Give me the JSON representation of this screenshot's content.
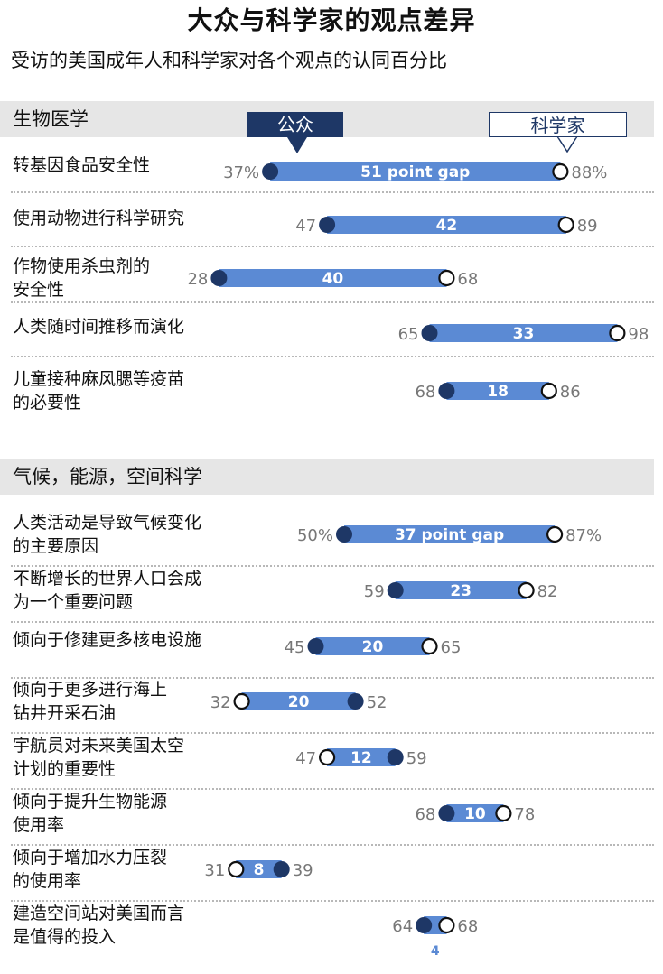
{
  "title": "大众与科学家的观点差异",
  "subtitle": "受访的美国成年人和科学家对各个观点的认同百分比",
  "legend": {
    "public": "公众",
    "scientists": "科学家"
  },
  "colors": {
    "public": "#1e3766",
    "bar": "#5b8ad4",
    "scientists_fill": "#ffffff",
    "value_text": "#777777",
    "band": "#e6e6e6"
  },
  "chart_data": {
    "type": "dumbbell",
    "series": [
      {
        "name": "公众"
      },
      {
        "name": "科学家"
      }
    ],
    "sections": [
      {
        "title": "生物医学",
        "rows": [
          {
            "label": [
              "转基因食品安全性"
            ],
            "public": 37,
            "scientists": 88,
            "gap": 51,
            "gap_label": "51 point gap",
            "public_text": "37%",
            "scientists_text": "88%"
          },
          {
            "label": [
              "使用动物进行科学研究"
            ],
            "public": 47,
            "scientists": 89,
            "gap": 42,
            "gap_label": "42",
            "public_text": "47",
            "scientists_text": "89"
          },
          {
            "label": [
              "作物使用杀虫剂的",
              "安全性"
            ],
            "public": 28,
            "scientists": 68,
            "gap": 40,
            "gap_label": "40",
            "public_text": "28",
            "scientists_text": "68"
          },
          {
            "label": [
              "人类随时间推移而演化"
            ],
            "public": 65,
            "scientists": 98,
            "gap": 33,
            "gap_label": "33",
            "public_text": "65",
            "scientists_text": "98"
          },
          {
            "label": [
              "儿童接种麻风腮等疫苗",
              "的必要性"
            ],
            "public": 68,
            "scientists": 86,
            "gap": 18,
            "gap_label": "18",
            "public_text": "68",
            "scientists_text": "86"
          }
        ]
      },
      {
        "title": "气候，能源，空间科学",
        "rows": [
          {
            "label": [
              "人类活动是导致气候变化",
              "的主要原因"
            ],
            "public": 50,
            "scientists": 87,
            "gap": 37,
            "gap_label": "37 point gap",
            "public_text": "50%",
            "scientists_text": "87%"
          },
          {
            "label": [
              "不断增长的世界人口会成",
              "为一个重要问题"
            ],
            "public": 59,
            "scientists": 82,
            "gap": 23,
            "gap_label": "23",
            "public_text": "59",
            "scientists_text": "82"
          },
          {
            "label": [
              "倾向于修建更多核电设施"
            ],
            "public": 45,
            "scientists": 65,
            "gap": 20,
            "gap_label": "20",
            "public_text": "45",
            "scientists_text": "65"
          },
          {
            "label": [
              "倾向于更多进行海上",
              "钻井开采石油"
            ],
            "public": 52,
            "scientists": 32,
            "gap": 20,
            "gap_label": "20",
            "public_text": "52",
            "scientists_text": "32"
          },
          {
            "label": [
              "宇航员对未来美国太空",
              "计划的重要性"
            ],
            "public": 59,
            "scientists": 47,
            "gap": 12,
            "gap_label": "12",
            "public_text": "59",
            "scientists_text": "47"
          },
          {
            "label": [
              "倾向于提升生物能源",
              "使用率"
            ],
            "public": 68,
            "scientists": 78,
            "gap": 10,
            "gap_label": "10",
            "public_text": "68",
            "scientists_text": "78"
          },
          {
            "label": [
              "倾向于增加水力压裂",
              "的使用率"
            ],
            "public": 39,
            "scientists": 31,
            "gap": 8,
            "gap_label": "8",
            "public_text": "39",
            "scientists_text": "31"
          },
          {
            "label": [
              "建造空间站对美国而言",
              "是值得的投入"
            ],
            "public": 64,
            "scientists": 68,
            "gap": 4,
            "gap_label": "4",
            "public_text": "64",
            "scientists_text": "68"
          }
        ]
      }
    ]
  }
}
